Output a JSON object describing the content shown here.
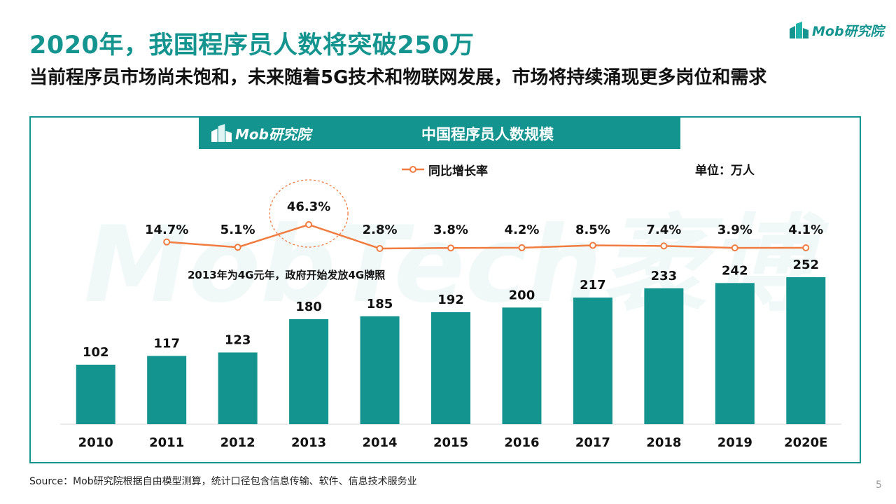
{
  "header": {
    "title": "2020年，我国程序员人数将突破250万",
    "subtitle": "当前程序员市场尚未饱和，未来随着5G技术和物联网发展，市场将持续涌现更多岗位和需求",
    "brand": "Mob研究院"
  },
  "chart_header": {
    "brand": "Mob研究院",
    "title": "中国程序员人数规模"
  },
  "watermark": "MobTech袤博",
  "colors": {
    "teal": "#13948f",
    "line": "#f07c40"
  },
  "chart_data": {
    "type": "bar",
    "title": "中国程序员人数规模",
    "unit": "单位：万人",
    "categories": [
      "2010",
      "2011",
      "2012",
      "2013",
      "2014",
      "2015",
      "2016",
      "2017",
      "2018",
      "2019",
      "2020E"
    ],
    "series": [
      {
        "name": "程序员人数",
        "type": "bar",
        "values": [
          102,
          117,
          123,
          180,
          185,
          192,
          200,
          217,
          233,
          242,
          252
        ]
      },
      {
        "name": "同比增长率",
        "type": "line",
        "values": [
          null,
          14.7,
          5.1,
          46.3,
          2.8,
          3.8,
          4.2,
          8.5,
          7.4,
          3.9,
          4.1
        ],
        "labels": [
          "",
          "14.7%",
          "5.1%",
          "46.3%",
          "2.8%",
          "3.8%",
          "4.2%",
          "8.5%",
          "7.4%",
          "3.9%",
          "4.1%"
        ]
      }
    ],
    "legend": [
      "同比增长率"
    ],
    "annotation": "2013年为4G元年，政府开始发放4G牌照",
    "highlight_category": "2013"
  },
  "footer": {
    "source": "Source：Mob研究院根据自由模型测算，统计口径包含信息传输、软件、信息技术服务业",
    "page": "5"
  }
}
